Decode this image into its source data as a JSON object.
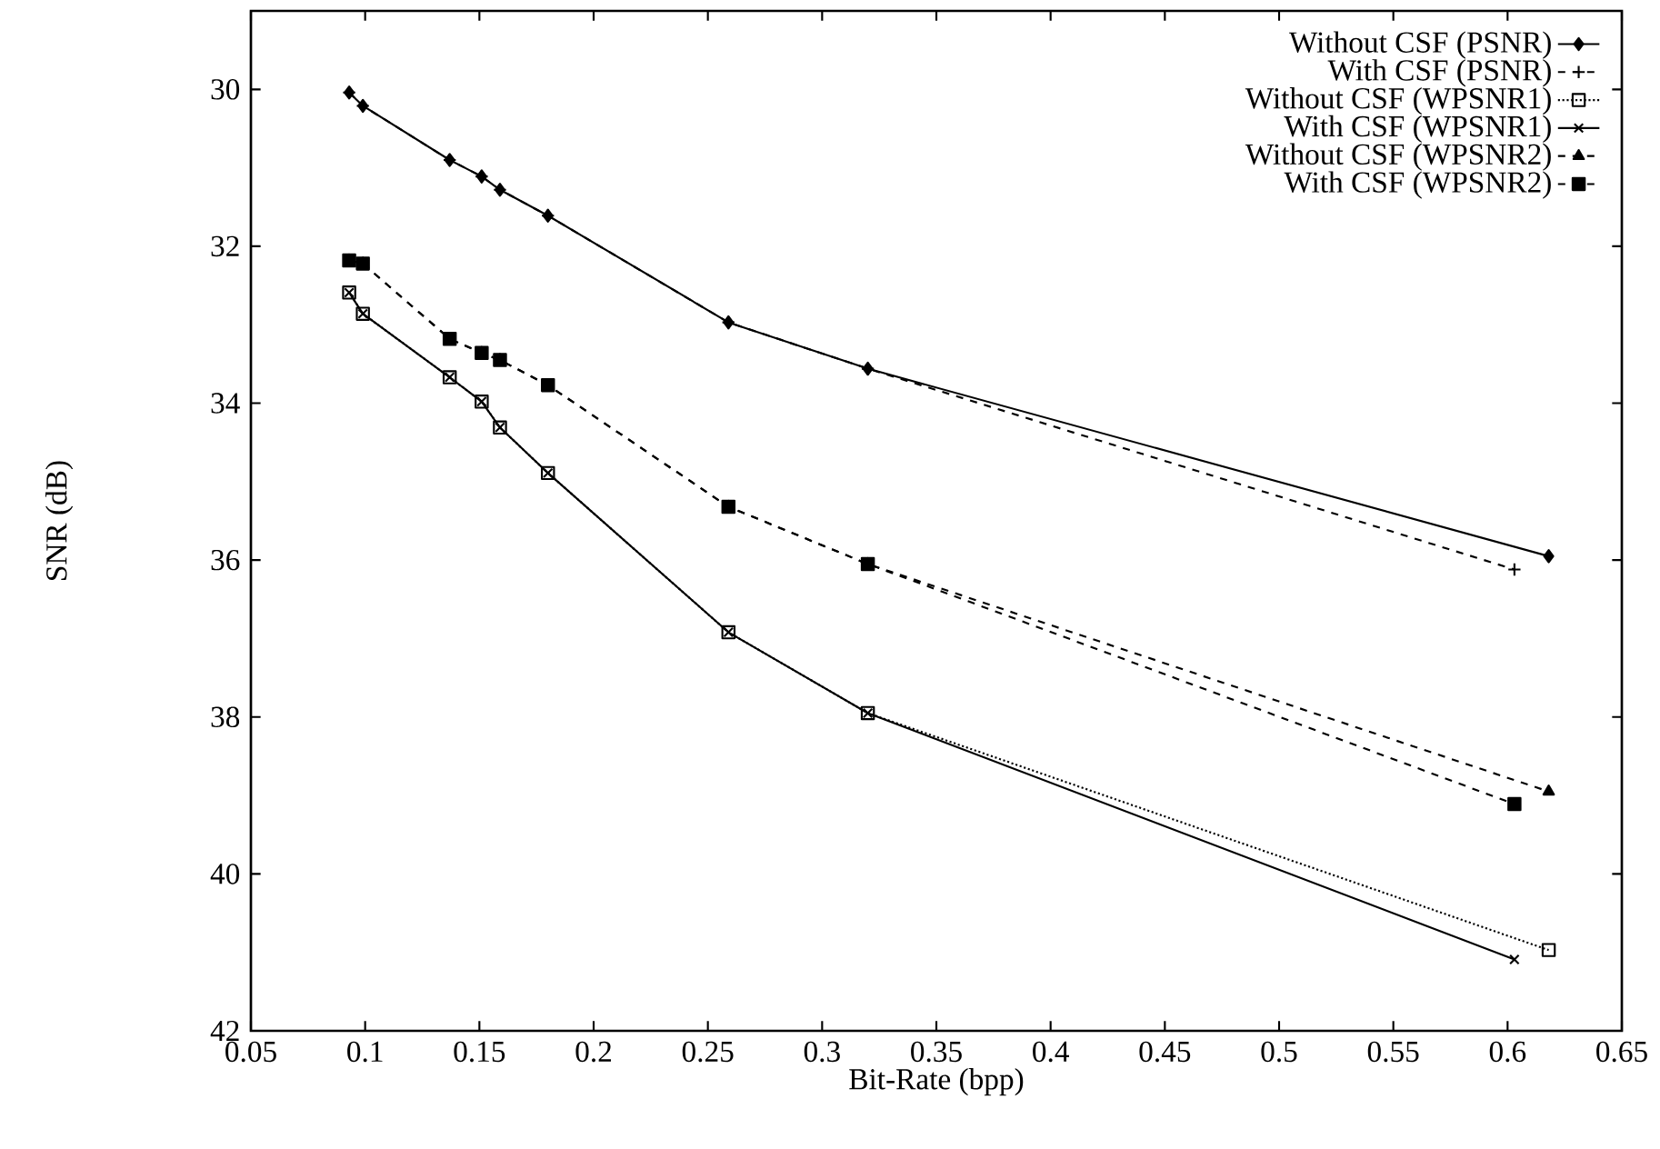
{
  "chart_data": {
    "type": "line",
    "xlabel": "Bit-Rate (bpp)",
    "ylabel": "SNR (dB)",
    "xlim": [
      0.05,
      0.65
    ],
    "xticks": [
      0.05,
      0.1,
      0.15,
      0.2,
      0.25,
      0.3,
      0.35,
      0.4,
      0.45,
      0.5,
      0.55,
      0.6,
      0.65
    ],
    "ylim": [
      42,
      29
    ],
    "yticks": [
      30,
      32,
      34,
      36,
      38,
      40,
      42
    ],
    "legend": "top right",
    "grid": false,
    "series": [
      {
        "name": "Without CSF (PSNR)",
        "color": "#000000",
        "marker": "diamond",
        "line_style": "solid",
        "x": [
          0.093,
          0.099,
          0.137,
          0.151,
          0.159,
          0.18,
          0.259,
          0.32,
          0.618
        ],
        "values": [
          30.04,
          30.21,
          30.9,
          31.11,
          31.28,
          31.61,
          32.97,
          33.56,
          35.95
        ]
      },
      {
        "name": "With CSF (PSNR)",
        "color": "#000000",
        "marker": "cross",
        "line_style": "dashed",
        "x": [
          0.093,
          0.099,
          0.137,
          0.151,
          0.159,
          0.18,
          0.259,
          0.32,
          0.603
        ],
        "values": [
          30.04,
          30.21,
          30.9,
          31.11,
          31.28,
          31.61,
          32.97,
          33.56,
          36.12
        ]
      },
      {
        "name": "Without CSF (WPSNR1)",
        "color": "#000000",
        "marker": "square",
        "line_style": "dotted",
        "x": [
          0.093,
          0.099,
          0.137,
          0.151,
          0.159,
          0.18,
          0.259,
          0.32,
          0.618
        ],
        "values": [
          32.59,
          32.86,
          33.67,
          33.98,
          34.31,
          34.89,
          36.92,
          37.95,
          40.97
        ]
      },
      {
        "name": "With CSF (WPSNR1)",
        "color": "#000000",
        "marker": "cross",
        "line_style": "solid",
        "x": [
          0.093,
          0.099,
          0.137,
          0.151,
          0.159,
          0.18,
          0.259,
          0.32,
          0.603
        ],
        "values": [
          32.59,
          32.86,
          33.67,
          33.98,
          34.31,
          34.89,
          36.92,
          37.95,
          41.09
        ]
      },
      {
        "name": "Without CSF (WPSNR2)",
        "color": "#000000",
        "marker": "triangle",
        "line_style": "dashed",
        "x": [
          0.093,
          0.099,
          0.137,
          0.151,
          0.159,
          0.18,
          0.259,
          0.32,
          0.618
        ],
        "values": [
          32.18,
          32.22,
          33.18,
          33.36,
          33.45,
          33.77,
          35.32,
          36.05,
          38.95
        ]
      },
      {
        "name": "With CSF (WPSNR2)",
        "color": "#000000",
        "marker": "square",
        "line_style": "dashed",
        "x": [
          0.093,
          0.099,
          0.137,
          0.151,
          0.159,
          0.18,
          0.259,
          0.32,
          0.603
        ],
        "values": [
          32.18,
          32.22,
          33.18,
          33.36,
          33.45,
          33.77,
          35.32,
          36.05,
          39.11
        ]
      }
    ]
  }
}
